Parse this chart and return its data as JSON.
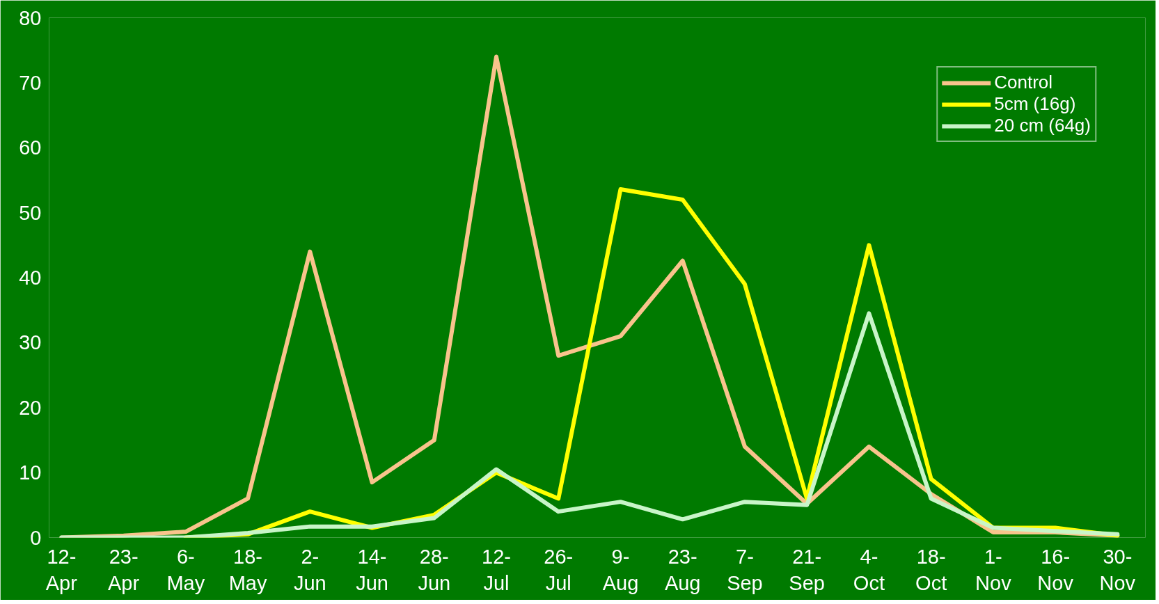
{
  "chart_data": {
    "type": "line",
    "categories": [
      "12-Apr",
      "23-Apr",
      "6-May",
      "18-May",
      "2-Jun",
      "14-Jun",
      "28-Jun",
      "12-Jul",
      "26-Jul",
      "9-Aug",
      "23-Aug",
      "7-Sep",
      "21-Sep",
      "4-Oct",
      "18-Oct",
      "1-Nov",
      "16-Nov",
      "30-Nov"
    ],
    "series": [
      {
        "name": "Control",
        "color": "#f8c48c",
        "values": [
          0,
          0.3,
          0.9,
          6,
          44,
          8.5,
          15,
          74,
          28,
          31,
          42.6,
          14,
          5.2,
          14,
          6.7,
          0.8,
          0.8,
          0.3
        ]
      },
      {
        "name": "5cm (16g)",
        "color": "#ffff00",
        "values": [
          null,
          null,
          0,
          0.5,
          4,
          1.5,
          3.5,
          10,
          6,
          53.6,
          52,
          39,
          6,
          45,
          9,
          1.5,
          1.5,
          0.3
        ]
      },
      {
        "name": "20 cm (64g)",
        "color": "#c8f5c8",
        "values": [
          0,
          0,
          0,
          0.7,
          1.7,
          1.7,
          3,
          10.5,
          4,
          5.5,
          2.8,
          5.5,
          5,
          34.5,
          6,
          1.5,
          1,
          0.5
        ]
      }
    ],
    "ylim": [
      0,
      80
    ],
    "yticks": [
      0,
      10,
      20,
      30,
      40,
      50,
      60,
      70,
      80
    ],
    "grid": false,
    "legend": "top right",
    "marker": "none",
    "line_style": "solid"
  }
}
